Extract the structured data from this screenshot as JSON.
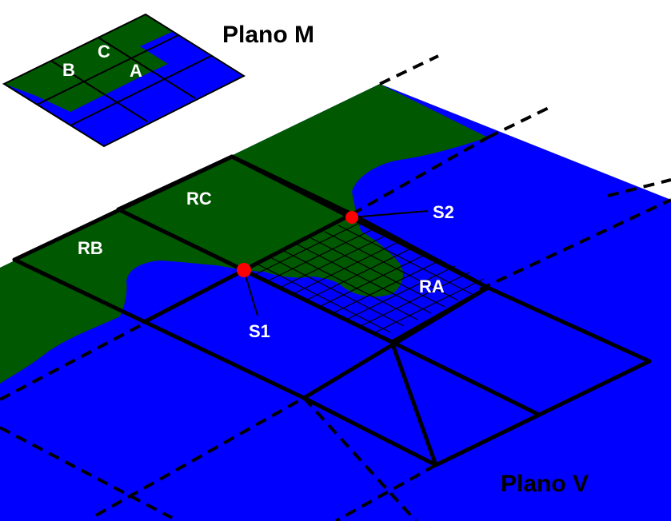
{
  "titles": {
    "plane_m": "Plano M",
    "plane_v": "Plano V"
  },
  "plane_m_labels": {
    "a": "A",
    "b": "B",
    "c": "C"
  },
  "region_labels": {
    "ra": "RA",
    "rb": "RB",
    "rc": "RC"
  },
  "point_labels": {
    "s1": "S1",
    "s2": "S2"
  },
  "colors": {
    "land": "#005800",
    "water": "#0000ff",
    "grid": "#000000",
    "point": "#ff0000",
    "label_light": "#ffffff",
    "label_dark": "#000000"
  }
}
